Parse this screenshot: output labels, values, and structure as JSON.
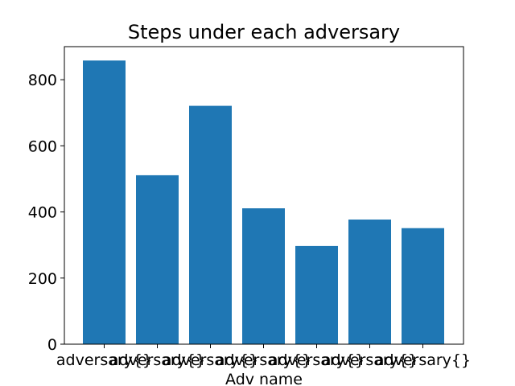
{
  "chart_data": {
    "type": "bar",
    "title": "Steps under each adversary",
    "xlabel": "Adv name",
    "ylabel": "",
    "categories": [
      "adversary{}",
      "adversary{}",
      "adversary{}",
      "adversary{}",
      "adversary{}",
      "adversary{}",
      "adversary{}"
    ],
    "values": [
      858,
      511,
      721,
      411,
      297,
      377,
      351
    ],
    "ylim": [
      0,
      900
    ],
    "yticks": [
      0,
      200,
      400,
      600,
      800
    ],
    "bar_color": "#1f77b4",
    "grid": false,
    "legend": "none"
  }
}
